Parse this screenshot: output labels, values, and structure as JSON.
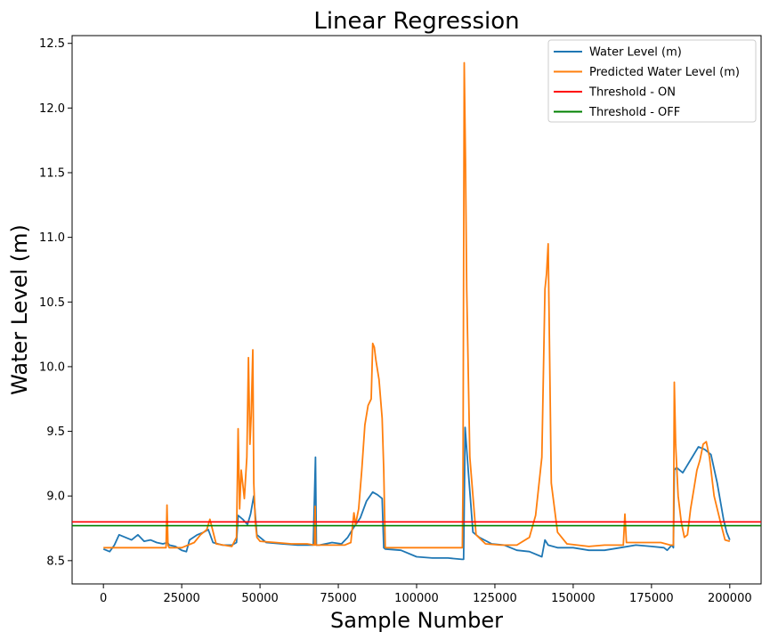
{
  "chart_data": {
    "type": "line",
    "title": "Linear Regression",
    "xlabel": "Sample Number",
    "ylabel": "Water Level (m)",
    "xlim": [
      -10000,
      210000
    ],
    "ylim": [
      8.32,
      12.56
    ],
    "x_ticks": [
      0,
      25000,
      50000,
      75000,
      100000,
      125000,
      150000,
      175000,
      200000
    ],
    "x_tick_labels": [
      "0",
      "25000",
      "50000",
      "75000",
      "100000",
      "125000",
      "150000",
      "175000",
      "200000"
    ],
    "y_ticks": [
      8.5,
      9.0,
      9.5,
      10.0,
      10.5,
      11.0,
      11.5,
      12.0,
      12.5
    ],
    "y_tick_labels": [
      "8.5",
      "9.0",
      "9.5",
      "10.0",
      "10.5",
      "11.0",
      "11.5",
      "12.0",
      "12.5"
    ],
    "grid": false,
    "legend_position": "top-right",
    "series": [
      {
        "name": "Water Level (m)",
        "color": "#1f77b4",
        "x": [
          0,
          2000,
          3500,
          5000,
          7000,
          9000,
          11000,
          13000,
          15000,
          17000,
          19000,
          20500,
          21000,
          23000,
          25000,
          26500,
          27500,
          30000,
          32000,
          33500,
          35000,
          38000,
          41000,
          42500,
          43000,
          44500,
          46000,
          47000,
          48000,
          49000,
          52000,
          57000,
          62000,
          67000,
          67700,
          68000,
          69000,
          73000,
          76000,
          78000,
          80000,
          82000,
          84000,
          86000,
          87500,
          89000,
          89500,
          90000,
          95000,
          100000,
          105000,
          110000,
          114500,
          115000,
          115500,
          116500,
          118000,
          120000,
          124000,
          128000,
          132000,
          136000,
          140000,
          141000,
          142000,
          145000,
          150000,
          155000,
          160000,
          165000,
          170000,
          175000,
          179000,
          180000,
          181500,
          182000,
          182300,
          183000,
          185000,
          186000,
          187000,
          188000,
          190000,
          192000,
          194000,
          196000,
          198000,
          199000,
          200000
        ],
        "y": [
          8.59,
          8.57,
          8.62,
          8.7,
          8.68,
          8.66,
          8.7,
          8.65,
          8.66,
          8.64,
          8.63,
          8.64,
          8.62,
          8.61,
          8.58,
          8.57,
          8.66,
          8.7,
          8.72,
          8.74,
          8.64,
          8.62,
          8.62,
          8.64,
          8.85,
          8.82,
          8.78,
          8.86,
          9.0,
          8.7,
          8.64,
          8.63,
          8.62,
          8.62,
          9.3,
          8.62,
          8.62,
          8.64,
          8.63,
          8.68,
          8.76,
          8.83,
          8.96,
          9.03,
          9.01,
          8.98,
          8.6,
          8.59,
          8.58,
          8.53,
          8.52,
          8.52,
          8.51,
          8.51,
          9.53,
          9.2,
          8.72,
          8.68,
          8.63,
          8.62,
          8.58,
          8.57,
          8.53,
          8.66,
          8.62,
          8.6,
          8.6,
          8.58,
          8.58,
          8.6,
          8.62,
          8.61,
          8.6,
          8.58,
          8.62,
          8.6,
          9.2,
          9.22,
          9.18,
          9.22,
          9.26,
          9.3,
          9.38,
          9.36,
          9.32,
          9.1,
          8.82,
          8.72,
          8.66
        ]
      },
      {
        "name": "Predicted Water Level (m)",
        "color": "#ff7f0e",
        "x": [
          0,
          20000,
          20300,
          20600,
          21000,
          25000,
          29000,
          31000,
          33000,
          34000,
          36000,
          41000,
          42500,
          43000,
          43500,
          44000,
          45000,
          45800,
          46300,
          46800,
          47200,
          47700,
          48000,
          48500,
          49000,
          50000,
          55000,
          60000,
          65000,
          67400,
          67600,
          67800,
          70000,
          77000,
          79000,
          80000,
          80500,
          81500,
          82500,
          83500,
          84500,
          85500,
          86000,
          86500,
          87000,
          88000,
          89000,
          89500,
          90000,
          100000,
          110000,
          114600,
          114800,
          115200,
          115600,
          116000,
          117000,
          119000,
          122000,
          127000,
          132000,
          136000,
          138000,
          140000,
          141000,
          141500,
          142000,
          143000,
          145000,
          148000,
          155000,
          160000,
          166000,
          166500,
          167000,
          170000,
          178000,
          181000,
          182000,
          182300,
          182700,
          183500,
          184500,
          185500,
          186500,
          187500,
          188500,
          189500,
          190500,
          191500,
          192500,
          193500,
          195000,
          197000,
          198500,
          200000
        ],
        "y": [
          8.6,
          8.6,
          8.93,
          8.62,
          8.6,
          8.6,
          8.64,
          8.7,
          8.74,
          8.82,
          8.63,
          8.61,
          8.68,
          9.52,
          8.9,
          9.2,
          8.98,
          9.3,
          10.07,
          9.4,
          9.62,
          10.13,
          9.1,
          8.8,
          8.68,
          8.65,
          8.64,
          8.63,
          8.63,
          8.62,
          8.92,
          8.62,
          8.62,
          8.62,
          8.64,
          8.87,
          8.78,
          8.9,
          9.2,
          9.55,
          9.7,
          9.75,
          10.18,
          10.15,
          10.05,
          9.9,
          9.6,
          9.2,
          8.6,
          8.6,
          8.6,
          8.6,
          9.1,
          12.35,
          11.6,
          10.6,
          9.3,
          8.7,
          8.63,
          8.62,
          8.62,
          8.68,
          8.85,
          9.3,
          10.6,
          10.72,
          10.95,
          9.1,
          8.72,
          8.63,
          8.61,
          8.62,
          8.62,
          8.86,
          8.64,
          8.64,
          8.64,
          8.62,
          8.62,
          9.88,
          9.4,
          9.0,
          8.8,
          8.68,
          8.7,
          8.9,
          9.05,
          9.2,
          9.28,
          9.4,
          9.42,
          9.3,
          9.0,
          8.8,
          8.66,
          8.65
        ]
      },
      {
        "name": "Threshold - ON",
        "color": "#ff0000",
        "x": [
          -10000,
          210000
        ],
        "y": [
          8.8,
          8.8
        ]
      },
      {
        "name": "Threshold - OFF",
        "color": "#008000",
        "x": [
          -10000,
          210000
        ],
        "y": [
          8.77,
          8.77
        ]
      }
    ]
  }
}
